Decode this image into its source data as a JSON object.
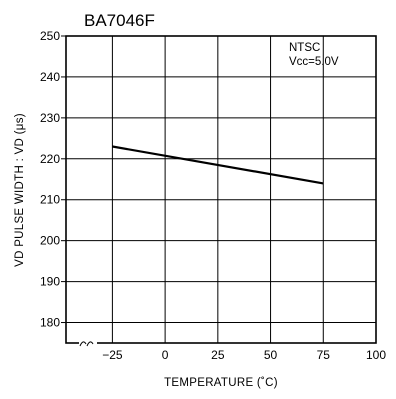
{
  "chart_data": {
    "type": "line",
    "title": "BA7046F",
    "xlabel": "TEMPERATURE (˚C)",
    "ylabel": "VD PULSE WIDTH : VD (μs)",
    "x_ticks": [
      -25,
      0,
      25,
      50,
      75,
      100
    ],
    "y_ticks": [
      180,
      190,
      200,
      210,
      220,
      230,
      240,
      250
    ],
    "xlim": [
      -47,
      100
    ],
    "ylim": [
      175,
      250
    ],
    "grid": true,
    "axis_break": "x",
    "annotation_lines": [
      "NTSC",
      "Vcc=5.0V"
    ],
    "series": [
      {
        "x": [
          -25,
          75
        ],
        "y": [
          223,
          214
        ]
      }
    ]
  }
}
